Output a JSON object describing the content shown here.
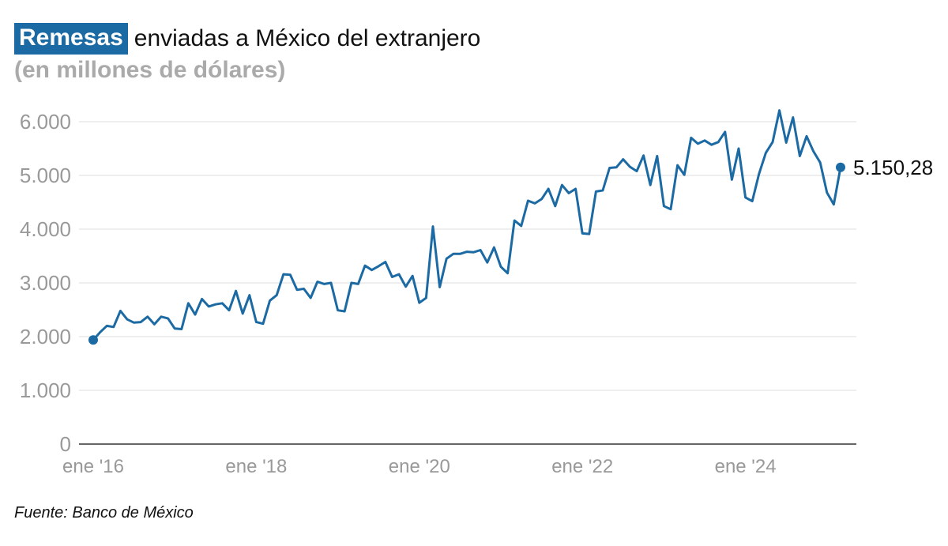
{
  "title": {
    "highlight": "Remesas",
    "rest": "enviadas a México del extranjero"
  },
  "subtitle": "(en millones de dólares)",
  "source": "Fuente: Banco de México",
  "colors": {
    "line": "#1c6aa3",
    "highlight_bg": "#1c6aa3",
    "grid": "#dddddd",
    "axis_text": "#999999",
    "subtitle": "#aaaaaa"
  },
  "chart_data": {
    "type": "line",
    "title": "Remesas enviadas a México del extranjero",
    "subtitle": "(en millones de dólares)",
    "xlabel": "",
    "ylabel": "",
    "ylim": [
      0,
      6500
    ],
    "y_ticks": [
      0,
      1000,
      2000,
      3000,
      4000,
      5000,
      6000
    ],
    "y_tick_labels": [
      "0",
      "1.000",
      "2.000",
      "3.000",
      "4.000",
      "5.000",
      "6.000"
    ],
    "x_tick_labels": [
      "ene '16",
      "ene '18",
      "ene '20",
      "ene '22",
      "ene '24"
    ],
    "grid": "horizontal",
    "end_label": "5.150,28",
    "series": [
      {
        "start": "2016-01",
        "frequency": "monthly",
        "values": [
          1938,
          2080,
          2200,
          2180,
          2480,
          2320,
          2260,
          2270,
          2370,
          2230,
          2370,
          2340,
          2150,
          2140,
          2620,
          2410,
          2700,
          2560,
          2600,
          2620,
          2490,
          2850,
          2430,
          2770,
          2270,
          2240,
          2670,
          2770,
          3160,
          3150,
          2870,
          2890,
          2720,
          3020,
          2980,
          3000,
          2490,
          2470,
          3000,
          2980,
          3320,
          3240,
          3310,
          3390,
          3110,
          3160,
          2930,
          3130,
          2630,
          2720,
          4050,
          2920,
          3450,
          3540,
          3540,
          3580,
          3570,
          3610,
          3380,
          3660,
          3300,
          3180,
          4160,
          4060,
          4530,
          4480,
          4560,
          4750,
          4430,
          4820,
          4670,
          4750,
          3920,
          3910,
          4700,
          4720,
          5140,
          5150,
          5300,
          5160,
          5080,
          5370,
          4820,
          5360,
          4430,
          4370,
          5190,
          5010,
          5700,
          5590,
          5650,
          5570,
          5620,
          5810,
          4920,
          5500,
          4590,
          4520,
          5030,
          5420,
          5620,
          6210,
          5610,
          6080,
          5360,
          5730,
          5450,
          5240,
          4680,
          4460,
          5150.28
        ]
      }
    ]
  }
}
